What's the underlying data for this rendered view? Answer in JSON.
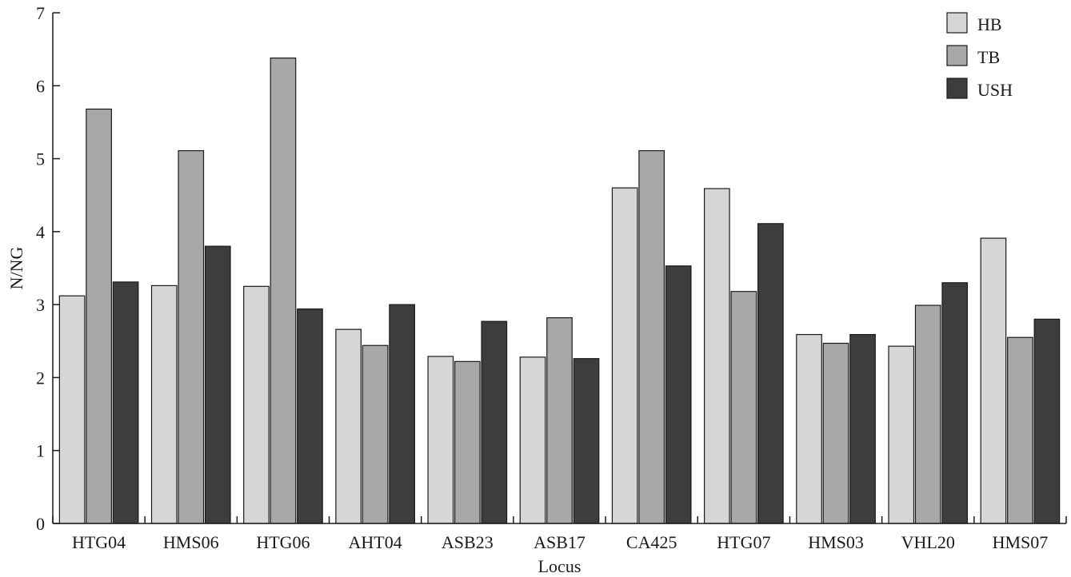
{
  "chart_data": {
    "type": "bar",
    "title": "",
    "xlabel": "Locus",
    "ylabel": "N/NG",
    "ylim": [
      0,
      7
    ],
    "yticks": [
      0,
      1,
      2,
      3,
      4,
      5,
      6,
      7
    ],
    "grid": false,
    "legend_position": "top-right",
    "categories": [
      "HTG04",
      "HMS06",
      "HTG06",
      "AHT04",
      "ASB23",
      "ASB17",
      "CA425",
      "HTG07",
      "HMS03",
      "VHL20",
      "HMS07"
    ],
    "series": [
      {
        "name": "HB",
        "color": "#d6d6d6",
        "values": [
          3.12,
          3.26,
          3.25,
          2.66,
          2.29,
          2.28,
          4.6,
          4.59,
          2.59,
          2.43,
          3.91
        ]
      },
      {
        "name": "TB",
        "color": "#a8a8aa",
        "values": [
          5.68,
          5.11,
          6.38,
          2.44,
          2.22,
          2.82,
          5.11,
          3.18,
          2.47,
          2.99,
          2.55
        ]
      },
      {
        "name": "USH",
        "color": "#3d3d3d",
        "values": [
          3.31,
          3.8,
          2.94,
          3.0,
          2.77,
          2.26,
          3.53,
          4.11,
          2.59,
          3.3,
          2.8
        ]
      }
    ]
  }
}
